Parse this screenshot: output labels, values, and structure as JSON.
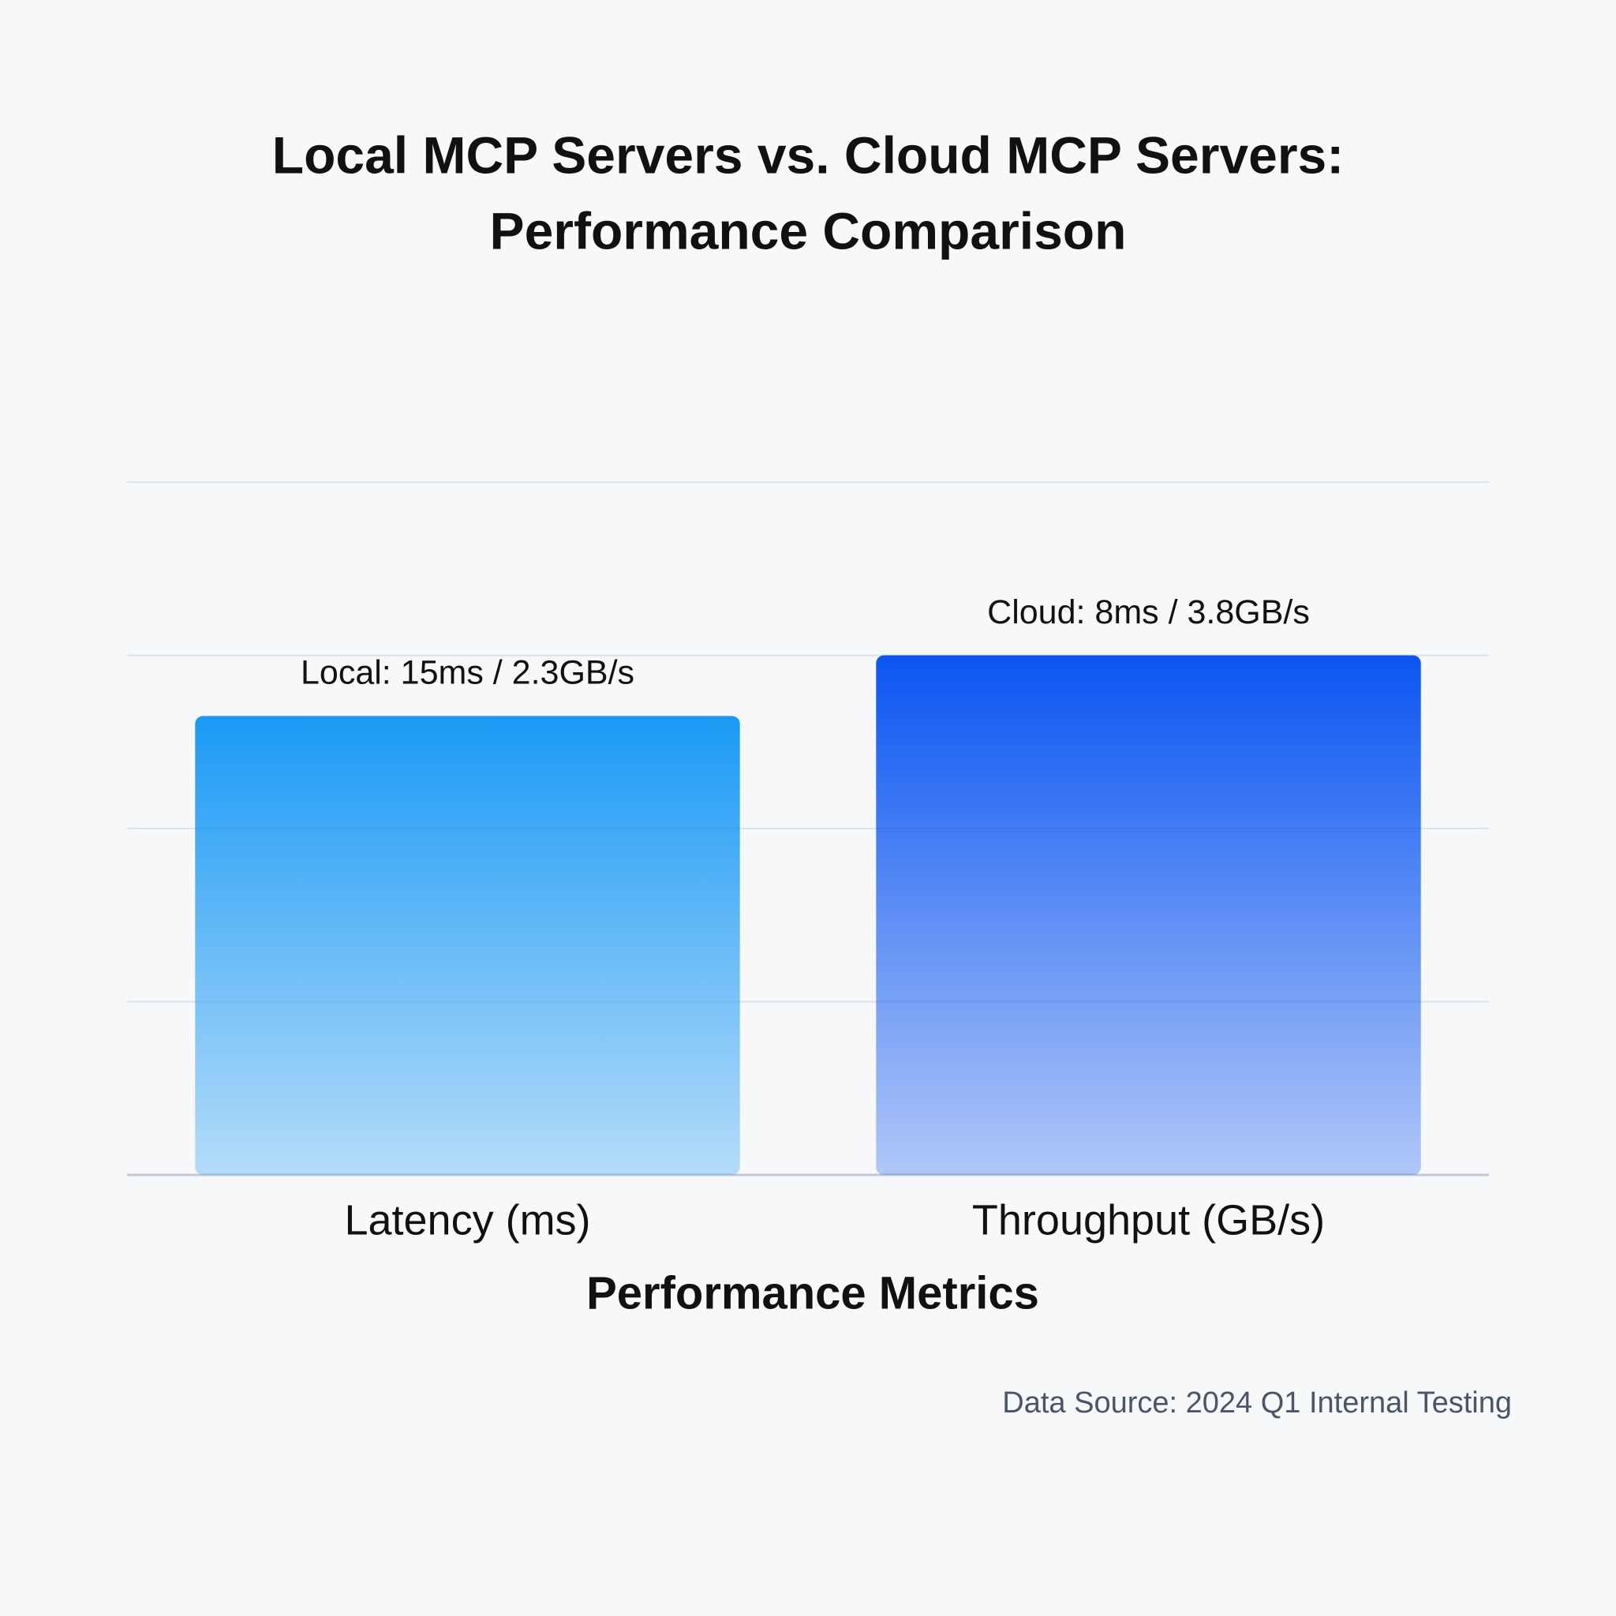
{
  "chart_data": {
    "type": "bar",
    "title": [
      "Local MCP Servers vs. Cloud MCP Servers:",
      "Performance Comparison"
    ],
    "categories": [
      "Latency (ms)",
      "Throughput (GB/s)"
    ],
    "values": [
      2.65,
      3.0
    ],
    "colors": [
      "#1a9af5",
      "#0a55f2"
    ],
    "annotations": [
      "Local: 15ms / 2.3GB/s",
      "Cloud: 8ms / 3.8GB/s"
    ],
    "x_label": "Performance Metrics",
    "source": "Data Source: 2024 Q1 Internal Testing",
    "ylim": [
      0,
      4
    ],
    "yticks": [
      0,
      1,
      2,
      3,
      4
    ],
    "grid": true,
    "show_tick_labels": false
  }
}
